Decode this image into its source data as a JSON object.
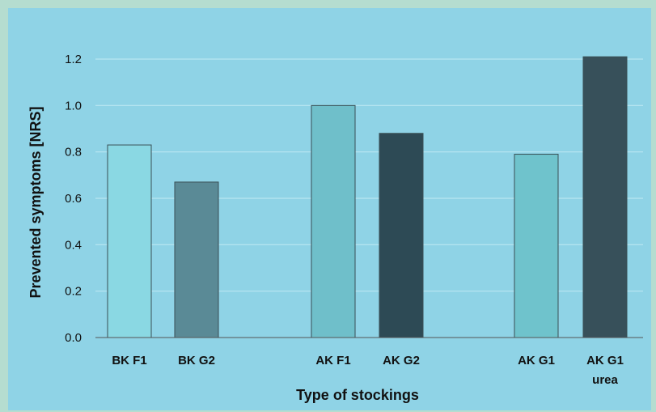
{
  "chart_data": {
    "type": "bar",
    "title": "",
    "xlabel": "Type of stockings",
    "ylabel": "Prevented symptoms [NRS]",
    "ylim": [
      0,
      1.3
    ],
    "yticks": [
      "0.0",
      "0.2",
      "0.4",
      "0.6",
      "0.8",
      "1.0",
      "1.2"
    ],
    "grid": true,
    "legend": "none",
    "categories": [
      {
        "label": "BK F1",
        "label2": "",
        "value": 0.83,
        "color": "#8ad8e3"
      },
      {
        "label": "BK G2",
        "label2": "",
        "value": 0.67,
        "color": "#5a8a96"
      },
      {
        "label": "AK F1",
        "label2": "",
        "value": 1.0,
        "color": "#6fbfca"
      },
      {
        "label": "AK G2",
        "label2": "",
        "value": 0.88,
        "color": "#2d4a55"
      },
      {
        "label": "AK G1",
        "label2": "",
        "value": 0.79,
        "color": "#6fc3cc"
      },
      {
        "label": "AK G1",
        "label2": "urea",
        "value": 1.21,
        "color": "#37505a"
      }
    ]
  }
}
